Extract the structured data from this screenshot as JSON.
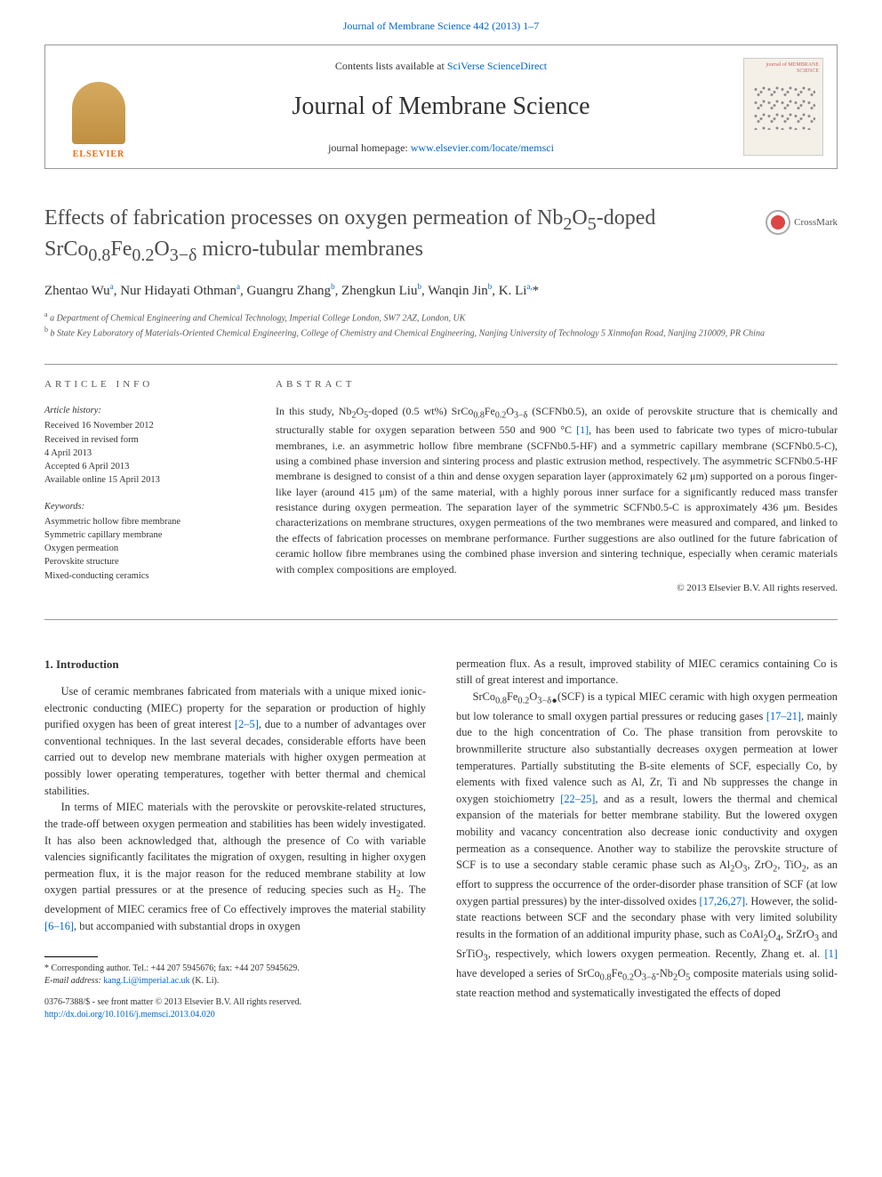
{
  "top_link": "Journal of Membrane Science 442 (2013) 1–7",
  "header": {
    "contents_prefix": "Contents lists available at ",
    "contents_link": "SciVerse ScienceDirect",
    "journal_title": "Journal of Membrane Science",
    "homepage_prefix": "journal homepage: ",
    "homepage_link": "www.elsevier.com/locate/memsci",
    "elsevier": "ELSEVIER",
    "cover_text": "journal of MEMBRANE SCIENCE"
  },
  "article": {
    "title_html": "Effects of fabrication processes on oxygen permeation of Nb<sub>2</sub>O<sub>5</sub>-doped SrCo<sub>0.8</sub>Fe<sub>0.2</sub>O<sub>3−δ</sub> micro-tubular membranes",
    "crossmark": "CrossMark",
    "authors_html": "Zhentao Wu<sup>a</sup>, Nur Hidayati Othman<sup>a</sup>, Guangru Zhang<sup>b</sup>, Zhengkun Liu<sup>b</sup>, Wanqin Jin<sup>b</sup>, K. Li<sup>a,</sup><span class='star'>*</span>",
    "affiliations": [
      "a Department of Chemical Engineering and Chemical Technology, Imperial College London, SW7 2AZ, London, UK",
      "b State Key Laboratory of Materials-Oriented Chemical Engineering, College of Chemistry and Chemical Engineering, Nanjing University of Technology 5 Xinmofan Road, Nanjing 210009, PR China"
    ]
  },
  "info": {
    "label": "ARTICLE INFO",
    "history_hd": "Article history:",
    "history": [
      "Received 16 November 2012",
      "Received in revised form",
      "4 April 2013",
      "Accepted 6 April 2013",
      "Available online 15 April 2013"
    ],
    "keywords_hd": "Keywords:",
    "keywords": [
      "Asymmetric hollow fibre membrane",
      "Symmetric capillary membrane",
      "Oxygen permeation",
      "Perovskite structure",
      "Mixed-conducting ceramics"
    ]
  },
  "abstract": {
    "label": "ABSTRACT",
    "text_html": "In this study, Nb<sub>2</sub>O<sub>5</sub>-doped (0.5 wt%) SrCo<sub>0.8</sub>Fe<sub>0.2</sub>O<sub>3−δ</sub> (SCFNb0.5), an oxide of perovskite structure that is chemically and structurally stable for oxygen separation between 550 and 900 °C <span class='ref'>[1]</span>, has been used to fabricate two types of micro-tubular membranes, i.e. an asymmetric hollow fibre membrane (SCFNb0.5-HF) and a symmetric capillary membrane (SCFNb0.5-C), using a combined phase inversion and sintering process and plastic extrusion method, respectively. The asymmetric SCFNb0.5-HF membrane is designed to consist of a thin and dense oxygen separation layer (approximately 62 μm) supported on a porous finger-like layer (around 415 μm) of the same material, with a highly porous inner surface for a significantly reduced mass transfer resistance during oxygen permeation. The separation layer of the symmetric SCFNb0.5-C is approximately 436 μm. Besides characterizations on membrane structures, oxygen permeations of the two membranes were measured and compared, and linked to the effects of fabrication processes on membrane performance. Further suggestions are also outlined for the future fabrication of ceramic hollow fibre membranes using the combined phase inversion and sintering technique, especially when ceramic materials with complex compositions are employed.",
    "copyright": "© 2013 Elsevier B.V. All rights reserved."
  },
  "body": {
    "heading": "1.  Introduction",
    "p1": "Use of ceramic membranes fabricated from materials with a unique mixed ionic-electronic conducting (MIEC) property for the separation or production of highly purified oxygen has been of great interest <span class='ref'>[2–5]</span>, due to a number of advantages over conventional techniques. In the last several decades, considerable efforts have been carried out to develop new membrane materials with higher oxygen permeation at possibly lower operating temperatures, together with better thermal and chemical stabilities.",
    "p2": "In terms of MIEC materials with the perovskite or perovskite-related structures, the trade-off between oxygen permeation and stabilities has been widely investigated. It has also been acknowledged that, although the presence of Co with variable valencies significantly facilitates the migration of oxygen, resulting in higher oxygen permeation flux, it is the major reason for the reduced membrane stability at low oxygen partial pressures or at the presence of reducing species such as H<sub>2</sub>. The development of MIEC ceramics free of Co effectively improves the material stability <span class='ref'>[6–16]</span>, but accompanied with substantial drops in oxygen",
    "p3": "permeation flux. As a result, improved stability of MIEC ceramics containing Co is still of great interest and importance.",
    "p4": "SrCo<sub>0.8</sub>Fe<sub>0.2</sub>O<sub>3−δ●</sub>(SCF) is a typical MIEC ceramic with high oxygen permeation but low tolerance to small oxygen partial pressures or reducing gases <span class='ref'>[17–21]</span>, mainly due to the high concentration of Co. The phase transition from perovskite to brownmillerite structure also substantially decreases oxygen permeation at lower temperatures. Partially substituting the B-site elements of SCF, especially Co, by elements with fixed valence such as Al, Zr, Ti and Nb suppresses the change in oxygen stoichiometry <span class='ref'>[22–25]</span>, and as a result, lowers the thermal and chemical expansion of the materials for better membrane stability. But the lowered oxygen mobility and vacancy concentration also decrease ionic conductivity and oxygen permeation as a consequence. Another way to stabilize the perovskite structure of SCF is to use a secondary stable ceramic phase such as Al<sub>2</sub>O<sub>3</sub>, ZrO<sub>2</sub>, TiO<sub>2</sub>, as an effort to suppress the occurrence of the order-disorder phase transition of SCF (at low oxygen partial pressures) by the inter-dissolved oxides <span class='ref'>[17,26,27]</span>. However, the solid-state reactions between SCF and the secondary phase with very limited solubility results in the formation of an additional impurity phase, such as CoAl<sub>2</sub>O<sub>4</sub>, SrZrO<sub>3</sub> and SrTiO<sub>3</sub>, respectively, which lowers oxygen permeation. Recently, Zhang et. al. <span class='ref'>[1]</span> have developed a series of SrCo<sub>0.8</sub>Fe<sub>0.2</sub>O<sub>3−δ</sub>-Nb<sub>2</sub>O<sub>5</sub> composite materials using solid-state reaction method and systematically investigated the effects of doped"
  },
  "footnotes": {
    "corr": "* Corresponding author. Tel.: +44 207 5945676; fax: +44 207 5945629.",
    "email_label": "E-mail address: ",
    "email": "kang.Li@imperial.ac.uk",
    "email_suffix": " (K. Li)."
  },
  "bottom": {
    "line1": "0376-7388/$ - see front matter © 2013 Elsevier B.V. All rights reserved.",
    "doi": "http://dx.doi.org/10.1016/j.memsci.2013.04.020"
  },
  "colors": {
    "link": "#0066cc",
    "text": "#333333",
    "muted": "#555555",
    "border": "#999999"
  }
}
